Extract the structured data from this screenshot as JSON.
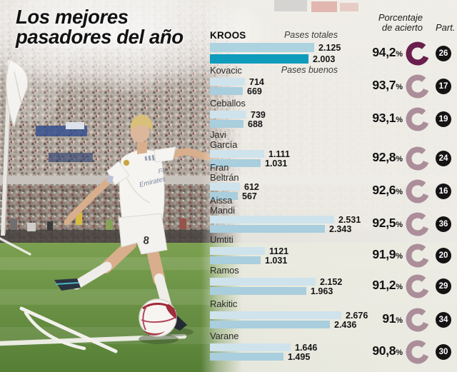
{
  "title": {
    "line1": "Los mejores",
    "line2": "pasadores del año"
  },
  "header": {
    "accuracy_line1": "Porcentaje",
    "accuracy_line2": "de acierto",
    "part": "Part."
  },
  "labels": {
    "total": "Pases totales",
    "good": "Pases buenos"
  },
  "percent_sign": "%",
  "photo": {
    "shirt_sponsor_line1": "Fly",
    "shirt_sponsor_line2": "Emirates",
    "shirt_number": "8"
  },
  "colors": {
    "bar_total": "#cfe3ec",
    "bar_good": "#a9cedd",
    "kroos_total": "#aed3e0",
    "kroos_good": "#0d9cbb",
    "ring": "#ab8e99",
    "ring_highlight": "#6a1e4d",
    "part_badge": "#161314"
  },
  "chart_data": {
    "type": "bar",
    "title": "Los mejores pasadores del año",
    "series_names": [
      "Pases totales",
      "Pases buenos"
    ],
    "value_axis": "pases",
    "xlim": [
      0,
      2800
    ],
    "columns": [
      "Porcentaje de acierto",
      "Part."
    ],
    "players": [
      {
        "name": "Kroos",
        "name_lines": [
          "KROOS"
        ],
        "total": 2125,
        "good": 2003,
        "total_label": "2.125",
        "good_label": "2.003",
        "accuracy_pct": 94.2,
        "accuracy_label": "94,2",
        "part": "26",
        "highlight": true
      },
      {
        "name": "Kovacic",
        "name_lines": [
          "Kovacic"
        ],
        "total": 714,
        "good": 669,
        "total_label": "714",
        "good_label": "669",
        "accuracy_pct": 93.7,
        "accuracy_label": "93,7",
        "part": "17"
      },
      {
        "name": "Ceballos",
        "name_lines": [
          "Ceballos"
        ],
        "total": 739,
        "good": 688,
        "total_label": "739",
        "good_label": "688",
        "accuracy_pct": 93.1,
        "accuracy_label": "93,1",
        "part": "19"
      },
      {
        "name": "Javi García",
        "name_lines": [
          "Javi",
          "García"
        ],
        "total": 1111,
        "good": 1031,
        "total_label": "1.111",
        "good_label": "1.031",
        "accuracy_pct": 92.8,
        "accuracy_label": "92,8",
        "part": "24"
      },
      {
        "name": "Fran Beltrán",
        "name_lines": [
          "Fran",
          "Beltrán"
        ],
        "total": 612,
        "good": 567,
        "total_label": "612",
        "good_label": "567",
        "accuracy_pct": 92.6,
        "accuracy_label": "92,6",
        "part": "16"
      },
      {
        "name": "Aissa Mandi",
        "name_lines": [
          "Aissa",
          "Mandi"
        ],
        "total": 2531,
        "good": 2343,
        "total_label": "2.531",
        "good_label": "2.343",
        "accuracy_pct": 92.5,
        "accuracy_label": "92,5",
        "part": "36"
      },
      {
        "name": "Umtiti",
        "name_lines": [
          "Umtiti"
        ],
        "total": 1121,
        "good": 1031,
        "total_label": "1121",
        "good_label": "1.031",
        "accuracy_pct": 91.9,
        "accuracy_label": "91,9",
        "part": "20"
      },
      {
        "name": "Ramos",
        "name_lines": [
          "Ramos"
        ],
        "total": 2152,
        "good": 1963,
        "total_label": "2.152",
        "good_label": "1.963",
        "accuracy_pct": 91.2,
        "accuracy_label": "91,2",
        "part": "29"
      },
      {
        "name": "Rakitic",
        "name_lines": [
          "Rakitic"
        ],
        "total": 2676,
        "good": 2436,
        "total_label": "2.676",
        "good_label": "2.436",
        "accuracy_pct": 91.0,
        "accuracy_label": "91",
        "part": "34"
      },
      {
        "name": "Varane",
        "name_lines": [
          "Varane"
        ],
        "total": 1646,
        "good": 1495,
        "total_label": "1.646",
        "good_label": "1.495",
        "accuracy_pct": 90.8,
        "accuracy_label": "90,8",
        "part": "30"
      }
    ]
  }
}
